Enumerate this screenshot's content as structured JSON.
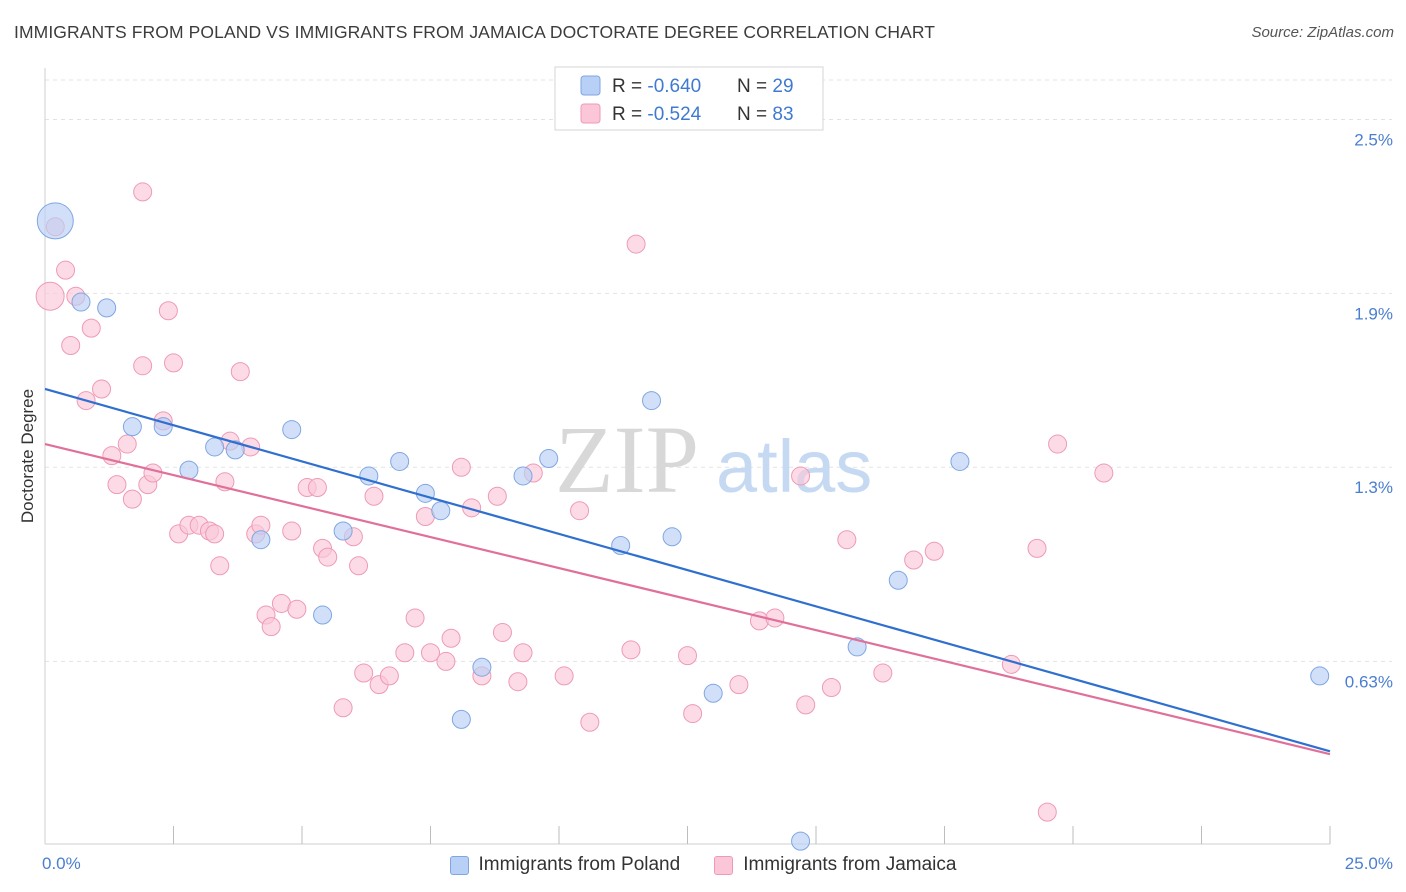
{
  "header": {
    "title": "IMMIGRANTS FROM POLAND VS IMMIGRANTS FROM JAMAICA DOCTORATE DEGREE CORRELATION CHART",
    "source": "Source: ZipAtlas.com"
  },
  "watermark": {
    "part1": "ZIP",
    "part2": "atlas"
  },
  "legend_top": {
    "rows": [
      {
        "r_label": "R = ",
        "r_value": "-0.640",
        "n_label": "N = ",
        "n_value": "29"
      },
      {
        "r_label": "R = ",
        "r_value": "-0.524",
        "n_label": "N = ",
        "n_value": "83"
      }
    ]
  },
  "legend_bottom": {
    "items": [
      {
        "label": "Immigrants from Poland"
      },
      {
        "label": "Immigrants from Jamaica"
      }
    ]
  },
  "chart_data": {
    "type": "scatter",
    "xlabel": "",
    "ylabel": "Doctorate Degree",
    "xlim": [
      0,
      25
    ],
    "ylim": [
      0,
      2.65
    ],
    "y_ticks": [
      {
        "value": 0.63,
        "label": "0.63%"
      },
      {
        "value": 1.3,
        "label": "1.3%"
      },
      {
        "value": 1.9,
        "label": "1.9%"
      },
      {
        "value": 2.5,
        "label": "2.5%"
      }
    ],
    "x_tick_labels": [
      {
        "value": 0,
        "label": "0.0%"
      },
      {
        "value": 25,
        "label": "25.0%"
      }
    ],
    "x_minor_ticks": [
      2.5,
      5,
      7.5,
      10,
      12.5,
      15,
      17.5,
      20,
      22.5,
      25
    ],
    "grid": true,
    "legend_position": "top-center",
    "colors": {
      "poland_fill": "#b8d0f5",
      "poland_stroke": "#7fa6e3",
      "poland_line": "#2f6fcf",
      "jamaica_fill": "#fbc7d8",
      "jamaica_stroke": "#ef9ab5",
      "jamaica_line": "#e0709a",
      "tick_label": "#4a7fd0",
      "grid": "#e3e3e3"
    },
    "series": [
      {
        "name": "Immigrants from Poland",
        "points": [
          [
            0.2,
            2.15,
            18
          ],
          [
            0.7,
            1.87,
            9
          ],
          [
            1.2,
            1.85,
            9
          ],
          [
            1.7,
            1.44,
            9
          ],
          [
            2.3,
            1.44,
            9
          ],
          [
            2.8,
            1.29,
            9
          ],
          [
            3.3,
            1.37,
            9
          ],
          [
            3.7,
            1.36,
            9
          ],
          [
            4.2,
            1.05,
            9
          ],
          [
            4.8,
            1.43,
            9
          ],
          [
            5.4,
            0.79,
            9
          ],
          [
            5.8,
            1.08,
            9
          ],
          [
            6.3,
            1.27,
            9
          ],
          [
            6.9,
            1.32,
            9
          ],
          [
            7.4,
            1.21,
            9
          ],
          [
            7.7,
            1.15,
            9
          ],
          [
            8.1,
            0.43,
            9
          ],
          [
            8.5,
            0.61,
            9
          ],
          [
            9.3,
            1.27,
            9
          ],
          [
            9.8,
            1.33,
            9
          ],
          [
            11.2,
            1.03,
            9
          ],
          [
            11.8,
            1.53,
            9
          ],
          [
            12.2,
            1.06,
            9
          ],
          [
            13.0,
            0.52,
            9
          ],
          [
            14.7,
            0.01,
            9
          ],
          [
            15.8,
            0.68,
            9
          ],
          [
            16.6,
            0.91,
            9
          ],
          [
            17.8,
            1.32,
            9
          ],
          [
            24.8,
            0.58,
            9
          ]
        ],
        "trend": {
          "x": [
            0,
            25
          ],
          "y": [
            1.57,
            0.32
          ]
        }
      },
      {
        "name": "Immigrants from Jamaica",
        "points": [
          [
            0.2,
            2.13,
            9
          ],
          [
            0.1,
            1.89,
            14
          ],
          [
            0.4,
            1.98,
            9
          ],
          [
            0.5,
            1.72,
            9
          ],
          [
            0.6,
            1.89,
            9
          ],
          [
            0.8,
            1.53,
            9
          ],
          [
            0.9,
            1.78,
            9
          ],
          [
            1.1,
            1.57,
            9
          ],
          [
            1.3,
            1.34,
            9
          ],
          [
            1.4,
            1.24,
            9
          ],
          [
            1.6,
            1.38,
            9
          ],
          [
            1.7,
            1.19,
            9
          ],
          [
            1.9,
            2.25,
            9
          ],
          [
            1.9,
            1.65,
            9
          ],
          [
            2.0,
            1.24,
            9
          ],
          [
            2.1,
            1.28,
            9
          ],
          [
            2.3,
            1.46,
            9
          ],
          [
            2.4,
            1.84,
            9
          ],
          [
            2.5,
            1.66,
            9
          ],
          [
            2.6,
            1.07,
            9
          ],
          [
            2.8,
            1.1,
            9
          ],
          [
            3.0,
            1.1,
            9
          ],
          [
            3.2,
            1.08,
            9
          ],
          [
            3.3,
            1.07,
            9
          ],
          [
            3.4,
            0.96,
            9
          ],
          [
            3.5,
            1.25,
            9
          ],
          [
            3.6,
            1.39,
            9
          ],
          [
            3.8,
            1.63,
            9
          ],
          [
            4.0,
            1.37,
            9
          ],
          [
            4.1,
            1.07,
            9
          ],
          [
            4.2,
            1.1,
            9
          ],
          [
            4.3,
            0.79,
            9
          ],
          [
            4.4,
            0.75,
            9
          ],
          [
            4.6,
            0.83,
            9
          ],
          [
            4.8,
            1.08,
            9
          ],
          [
            4.9,
            0.81,
            9
          ],
          [
            5.1,
            1.23,
            9
          ],
          [
            5.3,
            1.23,
            9
          ],
          [
            5.4,
            1.02,
            9
          ],
          [
            5.5,
            0.99,
            9
          ],
          [
            5.8,
            0.47,
            9
          ],
          [
            6.0,
            1.06,
            9
          ],
          [
            6.1,
            0.96,
            9
          ],
          [
            6.2,
            0.59,
            9
          ],
          [
            6.4,
            1.2,
            9
          ],
          [
            6.5,
            0.55,
            9
          ],
          [
            6.7,
            0.58,
            9
          ],
          [
            7.0,
            0.66,
            9
          ],
          [
            7.2,
            0.78,
            9
          ],
          [
            7.4,
            1.13,
            9
          ],
          [
            7.5,
            0.66,
            9
          ],
          [
            7.8,
            0.63,
            9
          ],
          [
            7.9,
            0.71,
            9
          ],
          [
            8.1,
            1.3,
            9
          ],
          [
            8.3,
            1.16,
            9
          ],
          [
            8.5,
            0.58,
            9
          ],
          [
            8.8,
            1.2,
            9
          ],
          [
            8.9,
            0.73,
            9
          ],
          [
            9.2,
            0.56,
            9
          ],
          [
            9.3,
            0.66,
            9
          ],
          [
            9.5,
            1.28,
            9
          ],
          [
            10.1,
            0.58,
            9
          ],
          [
            10.4,
            1.15,
            9
          ],
          [
            10.6,
            0.42,
            9
          ],
          [
            11.4,
            0.67,
            9
          ],
          [
            11.5,
            2.07,
            9
          ],
          [
            12.5,
            0.65,
            9
          ],
          [
            12.6,
            0.45,
            9
          ],
          [
            13.5,
            0.55,
            9
          ],
          [
            13.9,
            0.77,
            9
          ],
          [
            14.2,
            0.78,
            9
          ],
          [
            14.7,
            1.27,
            9
          ],
          [
            14.8,
            0.48,
            9
          ],
          [
            15.3,
            0.54,
            9
          ],
          [
            15.6,
            1.05,
            9
          ],
          [
            16.3,
            0.59,
            9
          ],
          [
            16.9,
            0.98,
            9
          ],
          [
            17.3,
            1.01,
            9
          ],
          [
            18.8,
            0.62,
            9
          ],
          [
            19.3,
            1.02,
            9
          ],
          [
            19.5,
            0.11,
            9
          ],
          [
            19.7,
            1.38,
            9
          ],
          [
            20.6,
            1.28,
            9
          ]
        ],
        "trend": {
          "x": [
            0,
            25
          ],
          "y": [
            1.38,
            0.31
          ]
        }
      }
    ]
  }
}
